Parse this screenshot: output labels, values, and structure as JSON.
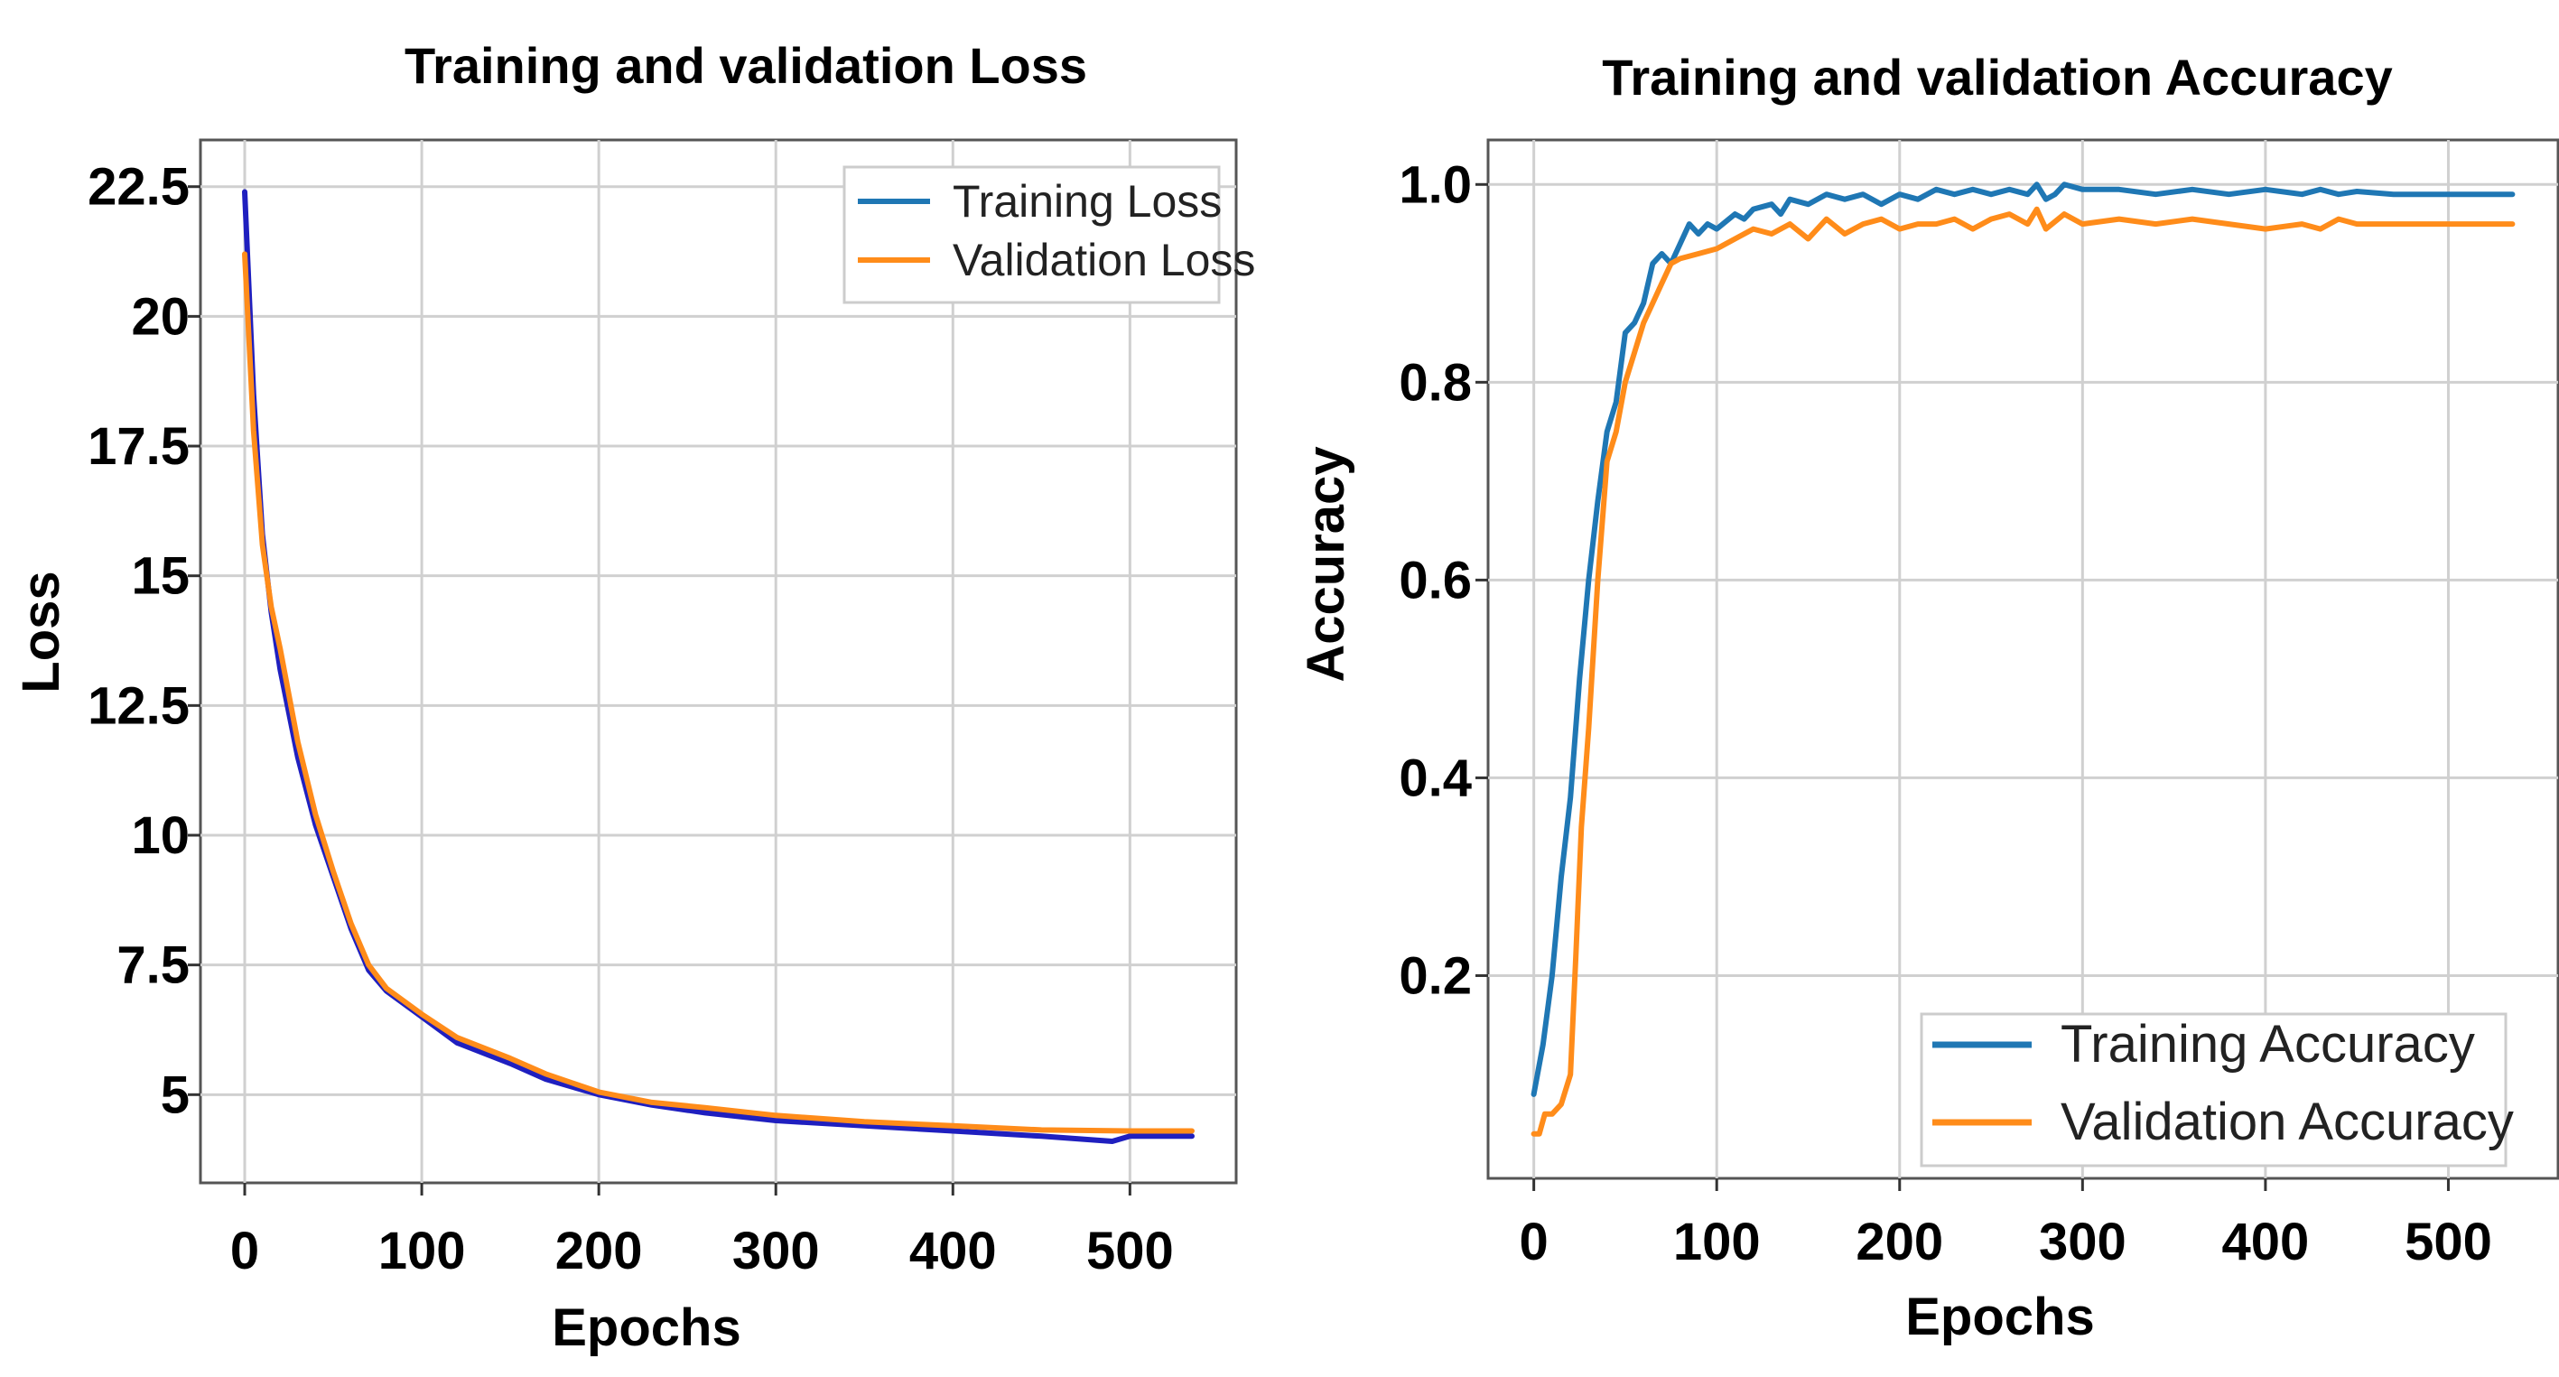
{
  "chart_data": [
    {
      "type": "line",
      "title": "Training and validation Loss",
      "xlabel": "Epochs",
      "ylabel": "Loss",
      "xlim": [
        -25,
        560
      ],
      "ylim": [
        3.3,
        23.4
      ],
      "xticks": [
        0,
        100,
        200,
        300,
        400,
        500
      ],
      "yticks": [
        5,
        7.5,
        10,
        12.5,
        15,
        17.5,
        20,
        22.5
      ],
      "ytick_labels": [
        "5",
        "7.5",
        "10",
        "12.5",
        "15",
        "17.5",
        "20",
        "22.5"
      ],
      "grid": true,
      "legend_position": "upper-right",
      "series": [
        {
          "name": "Training Loss",
          "color": "#1f1fbf",
          "legend_color": "#1f77b4",
          "x": [
            0,
            5,
            10,
            15,
            20,
            30,
            40,
            50,
            60,
            70,
            80,
            100,
            120,
            150,
            170,
            200,
            230,
            260,
            300,
            350,
            400,
            450,
            490,
            500,
            510,
            535
          ],
          "y": [
            22.4,
            18.5,
            15.8,
            14.3,
            13.2,
            11.5,
            10.2,
            9.2,
            8.2,
            7.4,
            7.0,
            6.5,
            6.0,
            5.6,
            5.3,
            5.0,
            4.8,
            4.65,
            4.5,
            4.4,
            4.3,
            4.2,
            4.1,
            4.2,
            4.2,
            4.2
          ]
        },
        {
          "name": "Validation Loss",
          "color": "#ff8c1a",
          "legend_color": "#ff8c1a",
          "x": [
            0,
            5,
            10,
            15,
            20,
            30,
            40,
            50,
            60,
            70,
            80,
            100,
            120,
            150,
            170,
            200,
            230,
            260,
            300,
            350,
            400,
            450,
            500,
            535
          ],
          "y": [
            21.2,
            17.8,
            15.6,
            14.4,
            13.6,
            11.8,
            10.4,
            9.3,
            8.3,
            7.5,
            7.05,
            6.55,
            6.1,
            5.7,
            5.4,
            5.05,
            4.85,
            4.75,
            4.6,
            4.48,
            4.4,
            4.32,
            4.3,
            4.3
          ]
        }
      ]
    },
    {
      "type": "line",
      "title": "Training and validation Accuracy",
      "xlabel": "Epochs",
      "ylabel": "Accuracy",
      "xlim": [
        -25,
        560
      ],
      "ylim": [
        -0.005,
        1.045
      ],
      "xticks": [
        0,
        100,
        200,
        300,
        400,
        500
      ],
      "yticks": [
        0.2,
        0.4,
        0.6,
        0.8,
        1.0
      ],
      "ytick_labels": [
        "0.2",
        "0.4",
        "0.6",
        "0.8",
        "1.0"
      ],
      "grid": true,
      "legend_position": "lower-right",
      "series": [
        {
          "name": "Training Accuracy",
          "color": "#1f77b4",
          "x": [
            0,
            5,
            10,
            15,
            20,
            25,
            30,
            35,
            40,
            45,
            50,
            55,
            60,
            65,
            70,
            75,
            80,
            85,
            90,
            95,
            100,
            110,
            115,
            120,
            130,
            135,
            140,
            150,
            160,
            170,
            180,
            190,
            200,
            210,
            220,
            230,
            240,
            250,
            260,
            270,
            275,
            280,
            285,
            290,
            300,
            320,
            340,
            360,
            380,
            400,
            420,
            430,
            440,
            450,
            470,
            500,
            535
          ],
          "y": [
            0.08,
            0.13,
            0.2,
            0.3,
            0.38,
            0.5,
            0.6,
            0.68,
            0.75,
            0.78,
            0.85,
            0.86,
            0.88,
            0.92,
            0.93,
            0.92,
            0.94,
            0.96,
            0.95,
            0.96,
            0.955,
            0.97,
            0.965,
            0.975,
            0.98,
            0.97,
            0.985,
            0.98,
            0.99,
            0.985,
            0.99,
            0.98,
            0.99,
            0.985,
            0.995,
            0.99,
            0.995,
            0.99,
            0.995,
            0.99,
            1.0,
            0.985,
            0.99,
            1.0,
            0.995,
            0.995,
            0.99,
            0.995,
            0.99,
            0.995,
            0.99,
            0.995,
            0.99,
            0.993,
            0.99,
            0.99,
            0.99
          ]
        },
        {
          "name": "Validation Accuracy",
          "color": "#ff8c1a",
          "x": [
            0,
            3,
            6,
            10,
            15,
            20,
            23,
            26,
            30,
            35,
            40,
            45,
            50,
            55,
            60,
            65,
            70,
            75,
            80,
            90,
            100,
            110,
            120,
            130,
            140,
            150,
            160,
            170,
            180,
            190,
            200,
            210,
            220,
            230,
            240,
            250,
            260,
            270,
            275,
            280,
            290,
            300,
            320,
            340,
            360,
            380,
            400,
            420,
            430,
            440,
            450,
            500,
            535
          ],
          "y": [
            0.04,
            0.04,
            0.06,
            0.06,
            0.07,
            0.1,
            0.22,
            0.35,
            0.45,
            0.6,
            0.72,
            0.75,
            0.8,
            0.83,
            0.86,
            0.88,
            0.9,
            0.92,
            0.925,
            0.93,
            0.935,
            0.945,
            0.955,
            0.95,
            0.96,
            0.945,
            0.965,
            0.95,
            0.96,
            0.965,
            0.955,
            0.96,
            0.96,
            0.965,
            0.955,
            0.965,
            0.97,
            0.96,
            0.975,
            0.955,
            0.97,
            0.96,
            0.965,
            0.96,
            0.965,
            0.96,
            0.955,
            0.96,
            0.955,
            0.965,
            0.96,
            0.96,
            0.96
          ]
        }
      ]
    }
  ]
}
